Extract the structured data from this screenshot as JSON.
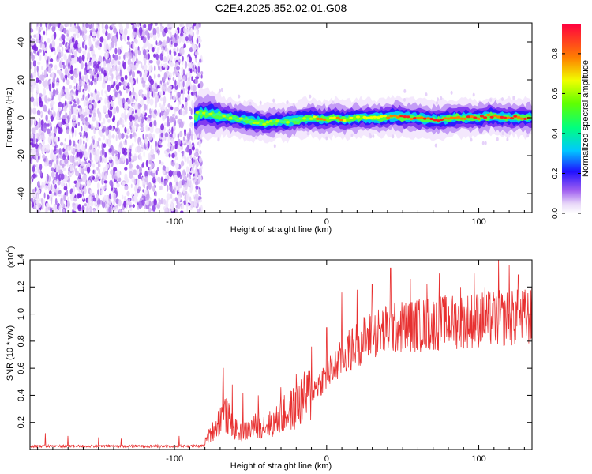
{
  "title": "C2E4.2025.352.02.01.G08",
  "chart_data": [
    {
      "type": "heatmap",
      "name": "spectrogram",
      "xlabel": "Height of straight line (km)",
      "ylabel": "Frequency (Hz)",
      "xlim": [
        -195,
        135
      ],
      "ylim": [
        -50,
        50
      ],
      "x_ticks": [
        -100,
        0,
        100
      ],
      "x_tick_labels": [
        "-100",
        "0",
        "100"
      ],
      "y_ticks": [
        -40,
        -20,
        0,
        20,
        40
      ],
      "y_tick_labels": [
        "-40",
        "-20",
        "0",
        "20",
        "40"
      ],
      "noise_region_x": [
        -195,
        -82
      ],
      "signal_region_x": [
        -87,
        135
      ],
      "signal_center_freq_hz": [
        [
          -85,
          2
        ],
        [
          -78,
          2
        ],
        [
          -70,
          1
        ],
        [
          -62,
          0
        ],
        [
          -55,
          -1
        ],
        [
          -48,
          -2
        ],
        [
          -40,
          -3
        ],
        [
          -32,
          -2
        ],
        [
          -25,
          -2
        ],
        [
          -18,
          -1
        ],
        [
          -10,
          0
        ],
        [
          -2,
          -1
        ],
        [
          5,
          0
        ],
        [
          12,
          -1
        ],
        [
          20,
          0
        ],
        [
          28,
          0
        ],
        [
          36,
          0
        ],
        [
          44,
          1
        ],
        [
          52,
          0
        ],
        [
          60,
          0
        ],
        [
          68,
          -1
        ],
        [
          76,
          -1
        ],
        [
          84,
          0
        ],
        [
          92,
          0
        ],
        [
          100,
          0
        ],
        [
          108,
          1
        ],
        [
          116,
          0
        ],
        [
          124,
          0
        ],
        [
          132,
          0
        ]
      ],
      "colorbar": {
        "label": "Normalized spectral amplitude",
        "range": [
          0,
          0.95
        ],
        "ticks": [
          0.0,
          0.2,
          0.4,
          0.6,
          0.8
        ],
        "tick_labels": [
          "0.0",
          "0.2",
          "0.4",
          "0.6",
          "0.8"
        ]
      }
    },
    {
      "type": "line",
      "name": "snr",
      "xlabel": "Height of straight line (km)",
      "ylabel": "SNR (10 * v/v)",
      "multiplier_label": "(x10",
      "multiplier_exponent": "4",
      "xlim": [
        -195,
        135
      ],
      "ylim": [
        0,
        1.4
      ],
      "x_ticks": [
        -100,
        0,
        100
      ],
      "x_tick_labels": [
        "-100",
        "0",
        "100"
      ],
      "y_ticks": [
        0.2,
        0.4,
        0.6,
        0.8,
        1.0,
        1.2,
        1.4
      ],
      "y_tick_labels": [
        "0.2",
        "0.4",
        "0.6",
        "0.8",
        "1.0",
        "1.2",
        "1.4"
      ],
      "color": "#e83030",
      "envelope": [
        [
          -195,
          0.02
        ],
        [
          -90,
          0.03
        ],
        [
          -80,
          0.06
        ],
        [
          -72,
          0.18
        ],
        [
          -68,
          0.28
        ],
        [
          -64,
          0.22
        ],
        [
          -58,
          0.12
        ],
        [
          -52,
          0.14
        ],
        [
          -46,
          0.18
        ],
        [
          -40,
          0.18
        ],
        [
          -34,
          0.2
        ],
        [
          -28,
          0.26
        ],
        [
          -22,
          0.3
        ],
        [
          -16,
          0.36
        ],
        [
          -10,
          0.42
        ],
        [
          -4,
          0.5
        ],
        [
          0,
          0.55
        ],
        [
          6,
          0.62
        ],
        [
          12,
          0.7
        ],
        [
          20,
          0.78
        ],
        [
          30,
          0.85
        ],
        [
          45,
          0.9
        ],
        [
          60,
          0.92
        ],
        [
          80,
          0.94
        ],
        [
          100,
          0.96
        ],
        [
          120,
          0.97
        ],
        [
          135,
          0.98
        ]
      ],
      "spikes": [
        [
          -185,
          0.12
        ],
        [
          -170,
          0.1
        ],
        [
          -150,
          0.09
        ],
        [
          -135,
          0.08
        ],
        [
          -97,
          0.1
        ],
        [
          -68,
          0.6
        ],
        [
          -62,
          0.48
        ],
        [
          -55,
          0.42
        ],
        [
          -45,
          0.4
        ],
        [
          -30,
          0.46
        ],
        [
          -20,
          0.56
        ],
        [
          -10,
          0.76
        ],
        [
          0,
          0.9
        ],
        [
          10,
          1.16
        ],
        [
          20,
          1.18
        ],
        [
          30,
          1.22
        ],
        [
          42,
          1.34
        ],
        [
          55,
          1.26
        ],
        [
          66,
          1.22
        ],
        [
          74,
          1.3
        ],
        [
          88,
          1.2
        ],
        [
          97,
          1.3
        ],
        [
          104,
          1.2
        ],
        [
          113,
          1.42
        ],
        [
          120,
          1.36
        ],
        [
          126,
          1.29
        ]
      ]
    }
  ]
}
